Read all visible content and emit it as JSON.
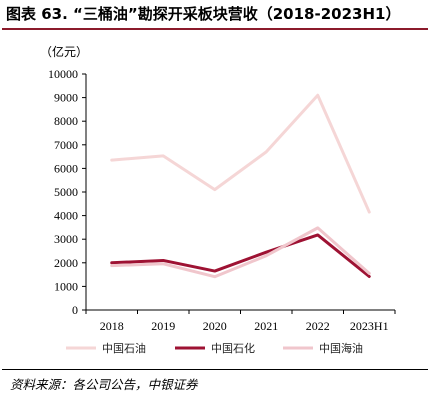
{
  "figure": {
    "title": "图表 63. “三桶油”勘探开采板块营收（2018-2023H1）",
    "source": "资料来源：各公司公告，中银证券"
  },
  "chart_data": {
    "type": "line",
    "unit": "（亿元）",
    "categories": [
      "2018",
      "2019",
      "2020",
      "2021",
      "2022",
      "2023H1"
    ],
    "yticks": [
      "0",
      "1000",
      "2000",
      "3000",
      "4000",
      "5000",
      "6000",
      "7000",
      "8000",
      "9000",
      "10000"
    ],
    "ylim": [
      0,
      10000
    ],
    "grid": false,
    "legend_position": "bottom",
    "series": [
      {
        "name": "中国石油",
        "color": "#f5d6d6",
        "width": 3,
        "values": [
          6350,
          6530,
          5100,
          6700,
          9100,
          4150
        ]
      },
      {
        "name": "中国石化",
        "color": "#9e1233",
        "width": 3,
        "values": [
          2000,
          2100,
          1650,
          2450,
          3180,
          1420
        ]
      },
      {
        "name": "中国海油",
        "color": "#f0c6cc",
        "width": 3,
        "values": [
          1880,
          1960,
          1410,
          2300,
          3480,
          1550
        ]
      }
    ]
  }
}
